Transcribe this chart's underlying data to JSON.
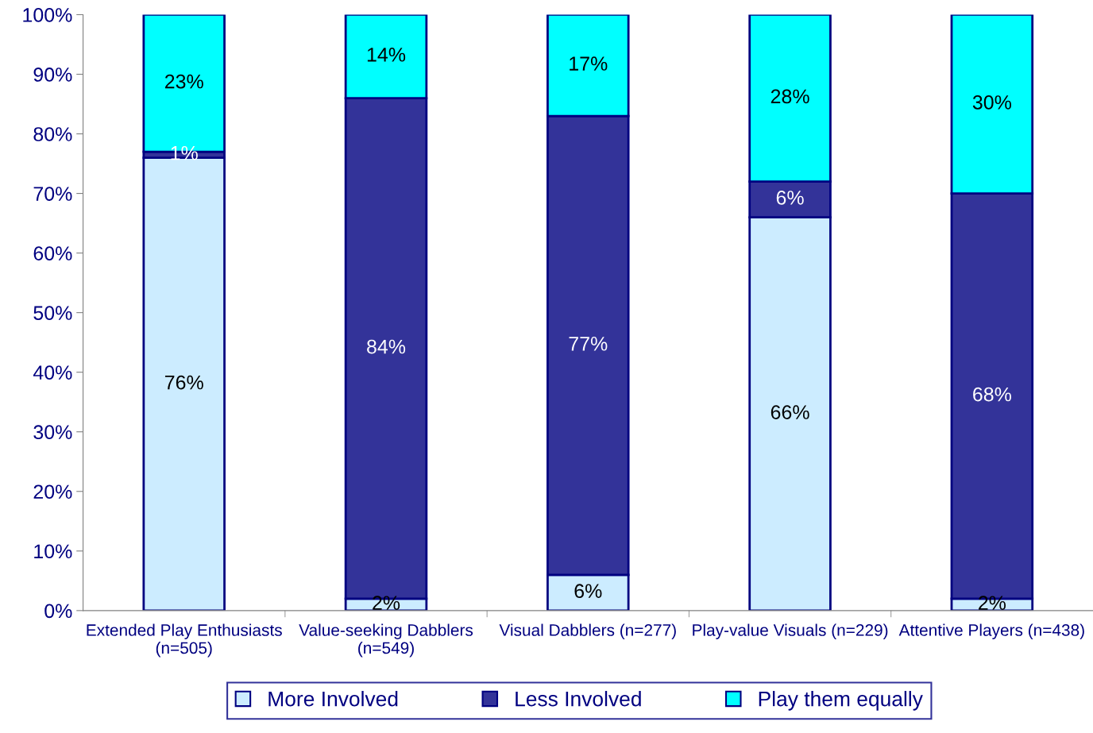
{
  "chart_data": {
    "type": "bar",
    "stacked": true,
    "categories": [
      "Extended Play Enthusiasts\n(n=505)",
      "Value-seeking Dabblers\n(n=549)",
      "Visual Dabblers (n=277)",
      "Play-value Visuals (n=229)",
      "Attentive Players (n=438)"
    ],
    "series": [
      {
        "name": "More Involved",
        "color": "#ccecff",
        "values": [
          76,
          2,
          6,
          66,
          2
        ],
        "value_labels": [
          "76%",
          "2%",
          "6%",
          "66%",
          "2%"
        ]
      },
      {
        "name": "Less Involved",
        "color": "#333399",
        "values": [
          1,
          84,
          77,
          6,
          68
        ],
        "value_labels": [
          "1%",
          "84%",
          "77%",
          "6%",
          "68%"
        ]
      },
      {
        "name": "Play them equally",
        "color": "#00ffff",
        "values": [
          23,
          14,
          17,
          28,
          30
        ],
        "value_labels": [
          "23%",
          "14%",
          "17%",
          "28%",
          "30%"
        ]
      }
    ],
    "ylim": [
      0,
      100
    ],
    "yticks": [
      {
        "value": 0,
        "label": "0%"
      },
      {
        "value": 10,
        "label": "10%"
      },
      {
        "value": 20,
        "label": "20%"
      },
      {
        "value": 30,
        "label": "30%"
      },
      {
        "value": 40,
        "label": "40%"
      },
      {
        "value": 50,
        "label": "50%"
      },
      {
        "value": 60,
        "label": "60%"
      },
      {
        "value": 70,
        "label": "70%"
      },
      {
        "value": 80,
        "label": "80%"
      },
      {
        "value": 90,
        "label": "90%"
      },
      {
        "value": 100,
        "label": "100%"
      }
    ],
    "grid": false,
    "legend": "bottom"
  }
}
